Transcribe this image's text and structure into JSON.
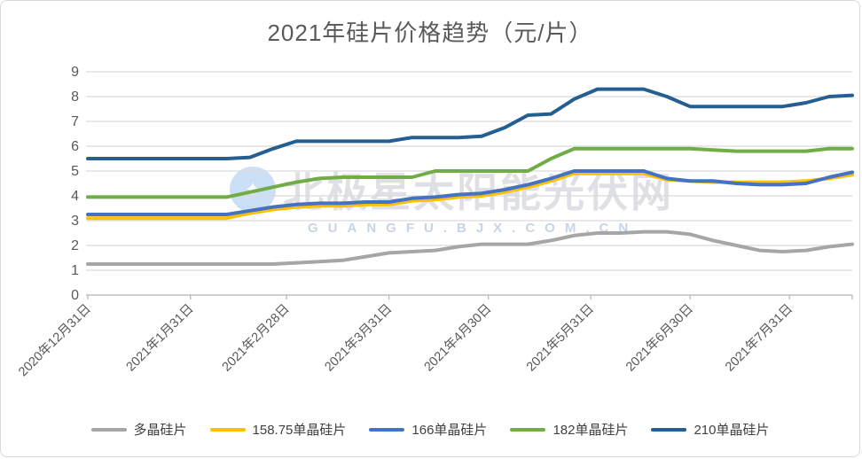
{
  "header": {
    "title": "2021年硅片价格趋势（元/片）"
  },
  "watermark": {
    "logo": "star-logo",
    "text": "北极星太阳能光伏网",
    "url": "GUANGFU.BJX.COM.CN"
  },
  "colors": {
    "title_text": "#595959",
    "axis_text": "#595959",
    "gridline": "#d9d9d9",
    "axis_line": "#bfbfbf",
    "series_poly": "#a6a6a6",
    "series_158": "#ffc000",
    "series_166": "#4472c4",
    "series_182": "#70ad47",
    "series_210": "#255e91"
  },
  "chart_data": {
    "type": "line",
    "title": "2021年硅片价格趋势（元/片）",
    "xlabel": "",
    "ylabel": "",
    "ylim": [
      0,
      9
    ],
    "ytick_labels": [
      "0",
      "1",
      "2",
      "3",
      "4",
      "5",
      "6",
      "7",
      "8",
      "9"
    ],
    "grid": true,
    "legend_position": "bottom",
    "x_total_weeks": 33,
    "x_note": "weekly price points, 2020-12-31 through mid-August 2021",
    "xtick_labels": [
      "2020年12月31日",
      "2021年1月31日",
      "2021年2月28日",
      "2021年3月31日",
      "2021年4月30日",
      "2021年5月31日",
      "2021年6月30日",
      "2021年7月31日"
    ],
    "xtick_weeks": [
      0,
      4.43,
      8.57,
      13,
      17.29,
      21.71,
      26,
      30.29
    ],
    "series": [
      {
        "name": "多晶硅片",
        "color": "#a6a6a6",
        "values": [
          1.25,
          1.25,
          1.25,
          1.25,
          1.25,
          1.25,
          1.25,
          1.25,
          1.25,
          1.3,
          1.35,
          1.4,
          1.55,
          1.7,
          1.75,
          1.8,
          1.95,
          2.05,
          2.05,
          2.05,
          2.2,
          2.4,
          2.5,
          2.5,
          2.55,
          2.55,
          2.45,
          2.2,
          2.0,
          1.8,
          1.75,
          1.8,
          1.95,
          2.05
        ]
      },
      {
        "name": "158.75单晶硅片",
        "color": "#ffc000",
        "values": [
          3.1,
          3.1,
          3.1,
          3.1,
          3.1,
          3.1,
          3.1,
          3.3,
          3.45,
          3.55,
          3.6,
          3.6,
          3.65,
          3.65,
          3.8,
          3.85,
          3.95,
          4.0,
          4.15,
          4.35,
          4.6,
          4.9,
          4.9,
          4.9,
          4.9,
          4.65,
          4.6,
          4.55,
          4.55,
          4.55,
          4.55,
          4.6,
          4.7,
          4.85
        ]
      },
      {
        "name": "166单晶硅片",
        "color": "#4472c4",
        "values": [
          3.25,
          3.25,
          3.25,
          3.25,
          3.25,
          3.25,
          3.25,
          3.4,
          3.55,
          3.65,
          3.7,
          3.7,
          3.75,
          3.75,
          3.9,
          3.95,
          4.05,
          4.1,
          4.25,
          4.45,
          4.7,
          5.0,
          5.0,
          5.0,
          5.0,
          4.7,
          4.6,
          4.6,
          4.5,
          4.45,
          4.45,
          4.5,
          4.75,
          4.95
        ]
      },
      {
        "name": "182单晶硅片",
        "color": "#70ad47",
        "values": [
          3.95,
          3.95,
          3.95,
          3.95,
          3.95,
          3.95,
          3.95,
          4.15,
          4.35,
          4.55,
          4.7,
          4.75,
          4.75,
          4.75,
          4.75,
          5.0,
          5.0,
          5.0,
          5.0,
          5.0,
          5.5,
          5.9,
          5.9,
          5.9,
          5.9,
          5.9,
          5.9,
          5.85,
          5.8,
          5.8,
          5.8,
          5.8,
          5.9,
          5.9
        ]
      },
      {
        "name": "210单晶硅片",
        "color": "#255e91",
        "values": [
          5.5,
          5.5,
          5.5,
          5.5,
          5.5,
          5.5,
          5.5,
          5.55,
          5.9,
          6.2,
          6.2,
          6.2,
          6.2,
          6.2,
          6.35,
          6.35,
          6.35,
          6.4,
          6.75,
          7.25,
          7.3,
          7.9,
          8.3,
          8.3,
          8.3,
          8.0,
          7.6,
          7.6,
          7.6,
          7.6,
          7.6,
          7.75,
          8.0,
          8.05
        ]
      }
    ]
  }
}
